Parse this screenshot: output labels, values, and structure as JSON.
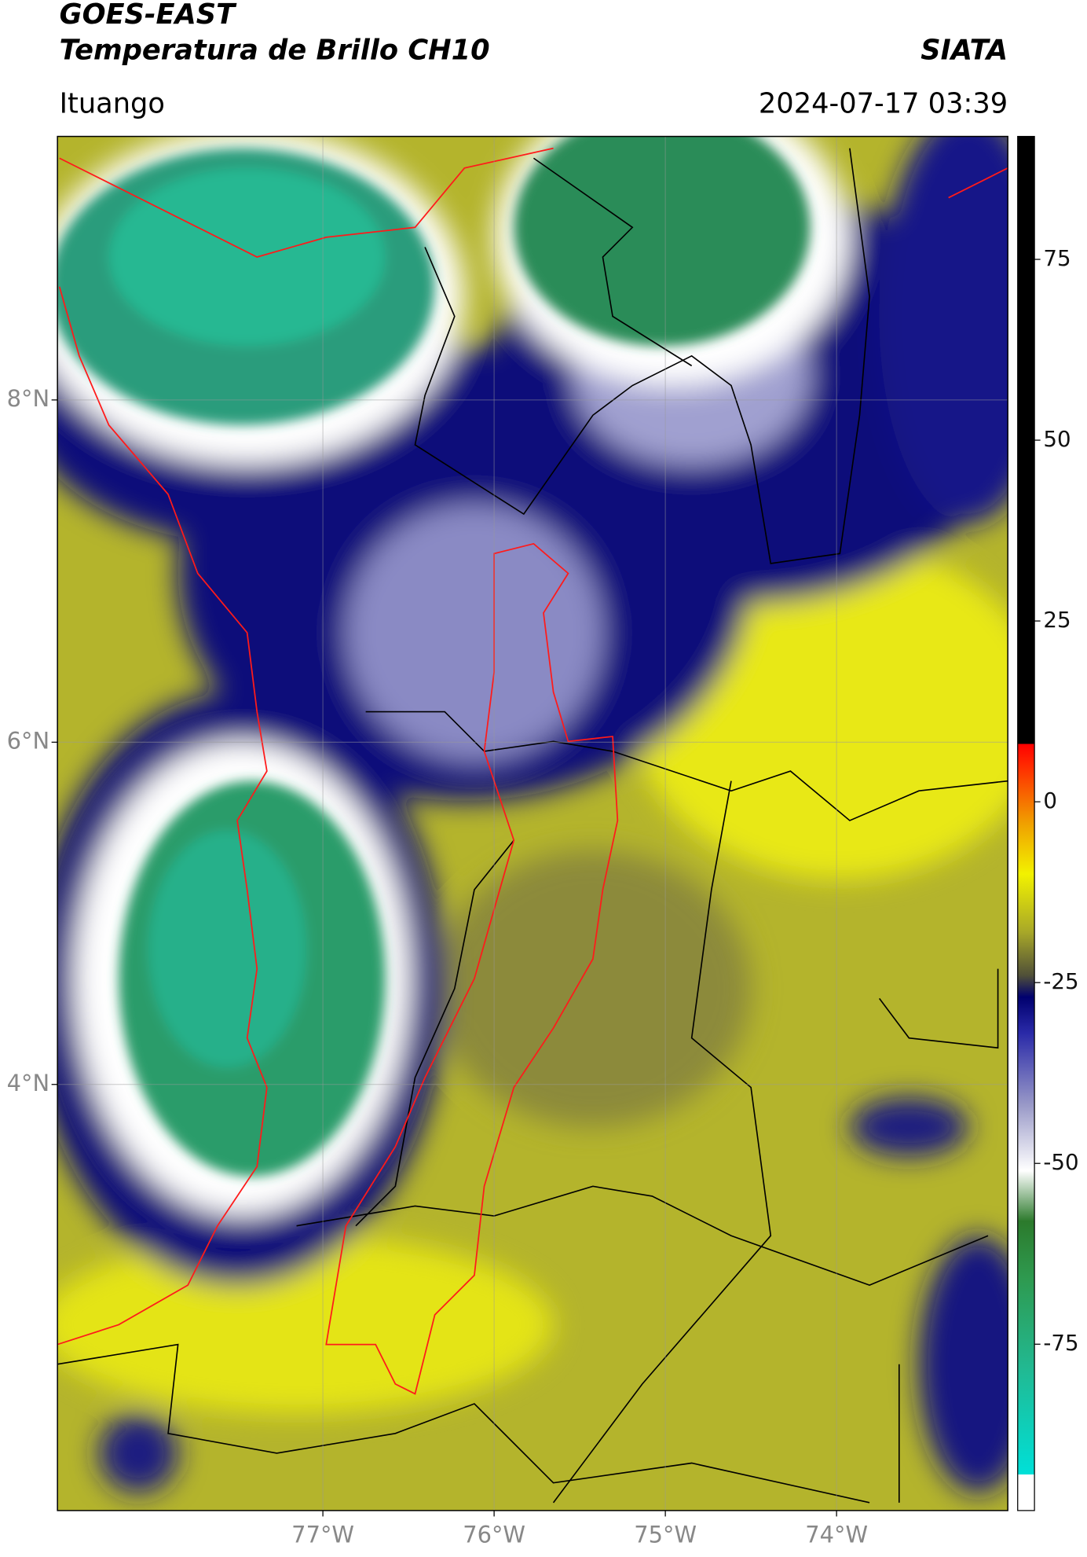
{
  "header": {
    "title": "GOES-EAST",
    "subtitle": "Temperatura de Brillo CH10",
    "source": "SIATA",
    "location": "Ituango",
    "timestamp": "2024-07-17 03:39"
  },
  "chart_data": {
    "type": "map",
    "xlim": [
      -78.55,
      -73.0
    ],
    "ylim": [
      1.51,
      9.54
    ],
    "xticks": [
      {
        "value": -77,
        "label": "77°W"
      },
      {
        "value": -76,
        "label": "76°W"
      },
      {
        "value": -75,
        "label": "75°W"
      },
      {
        "value": -74,
        "label": "74°W"
      }
    ],
    "yticks": [
      {
        "value": 4,
        "label": "4°N"
      },
      {
        "value": 6,
        "label": "6°N"
      },
      {
        "value": 8,
        "label": "8°N"
      }
    ],
    "grid": true,
    "colorbar": {
      "lim": [
        -98,
        92
      ],
      "ticks": [
        -75,
        -50,
        -25,
        0,
        25,
        50,
        75
      ],
      "stops": [
        {
          "value": -98,
          "color": "#ffffff"
        },
        {
          "value": -93,
          "color": "#ffffff"
        },
        {
          "value": -93,
          "color": "#00e0d8"
        },
        {
          "value": -78,
          "color": "#22b890"
        },
        {
          "value": -66,
          "color": "#2e9a50"
        },
        {
          "value": -58,
          "color": "#2c7a2c"
        },
        {
          "value": -51,
          "color": "#ffffff"
        },
        {
          "value": -42,
          "color": "#9a9ac8"
        },
        {
          "value": -32,
          "color": "#2a2aa8"
        },
        {
          "value": -27,
          "color": "#00006e"
        },
        {
          "value": -24,
          "color": "#505038"
        },
        {
          "value": -18,
          "color": "#a8a828"
        },
        {
          "value": -10,
          "color": "#f2f200"
        },
        {
          "value": -3,
          "color": "#f0a000"
        },
        {
          "value": 5,
          "color": "#ff2a00"
        },
        {
          "value": 8,
          "color": "#ff0000"
        },
        {
          "value": 8,
          "color": "#000000"
        },
        {
          "value": 92,
          "color": "#000000"
        }
      ]
    }
  }
}
